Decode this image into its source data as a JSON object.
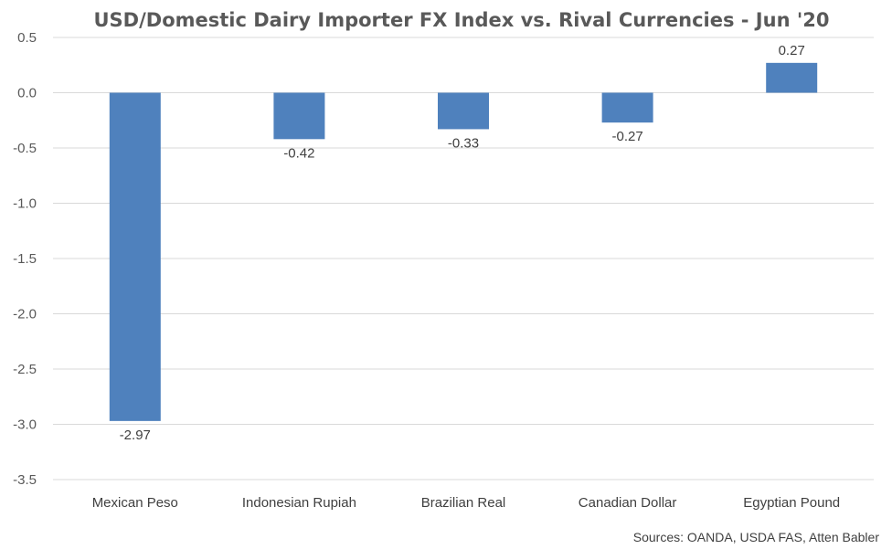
{
  "chart_data": {
    "type": "bar",
    "title": "USD/Domestic Dairy Importer FX Index vs. Rival Currencies - Jun '20",
    "categories": [
      "Mexican Peso",
      "Indonesian Rupiah",
      "Brazilian Real",
      "Canadian Dollar",
      "Egyptian Pound"
    ],
    "values": [
      -2.97,
      -0.42,
      -0.33,
      -0.27,
      0.27
    ],
    "value_labels": [
      "-2.97",
      "-0.42",
      "-0.33",
      "-0.27",
      "0.27"
    ],
    "ylim": [
      -3.5,
      0.5
    ],
    "yticks": [
      0.5,
      0.0,
      -0.5,
      -1.0,
      -1.5,
      -2.0,
      -2.5,
      -3.0,
      -3.5
    ],
    "ytick_labels": [
      "0.5",
      "0.0",
      "-0.5",
      "-1.0",
      "-1.5",
      "-2.0",
      "-2.5",
      "-3.0",
      "-3.5"
    ],
    "grid": true,
    "bar_color": "#4f81bd",
    "source": "Sources: OANDA, USDA FAS, Atten Babler"
  }
}
